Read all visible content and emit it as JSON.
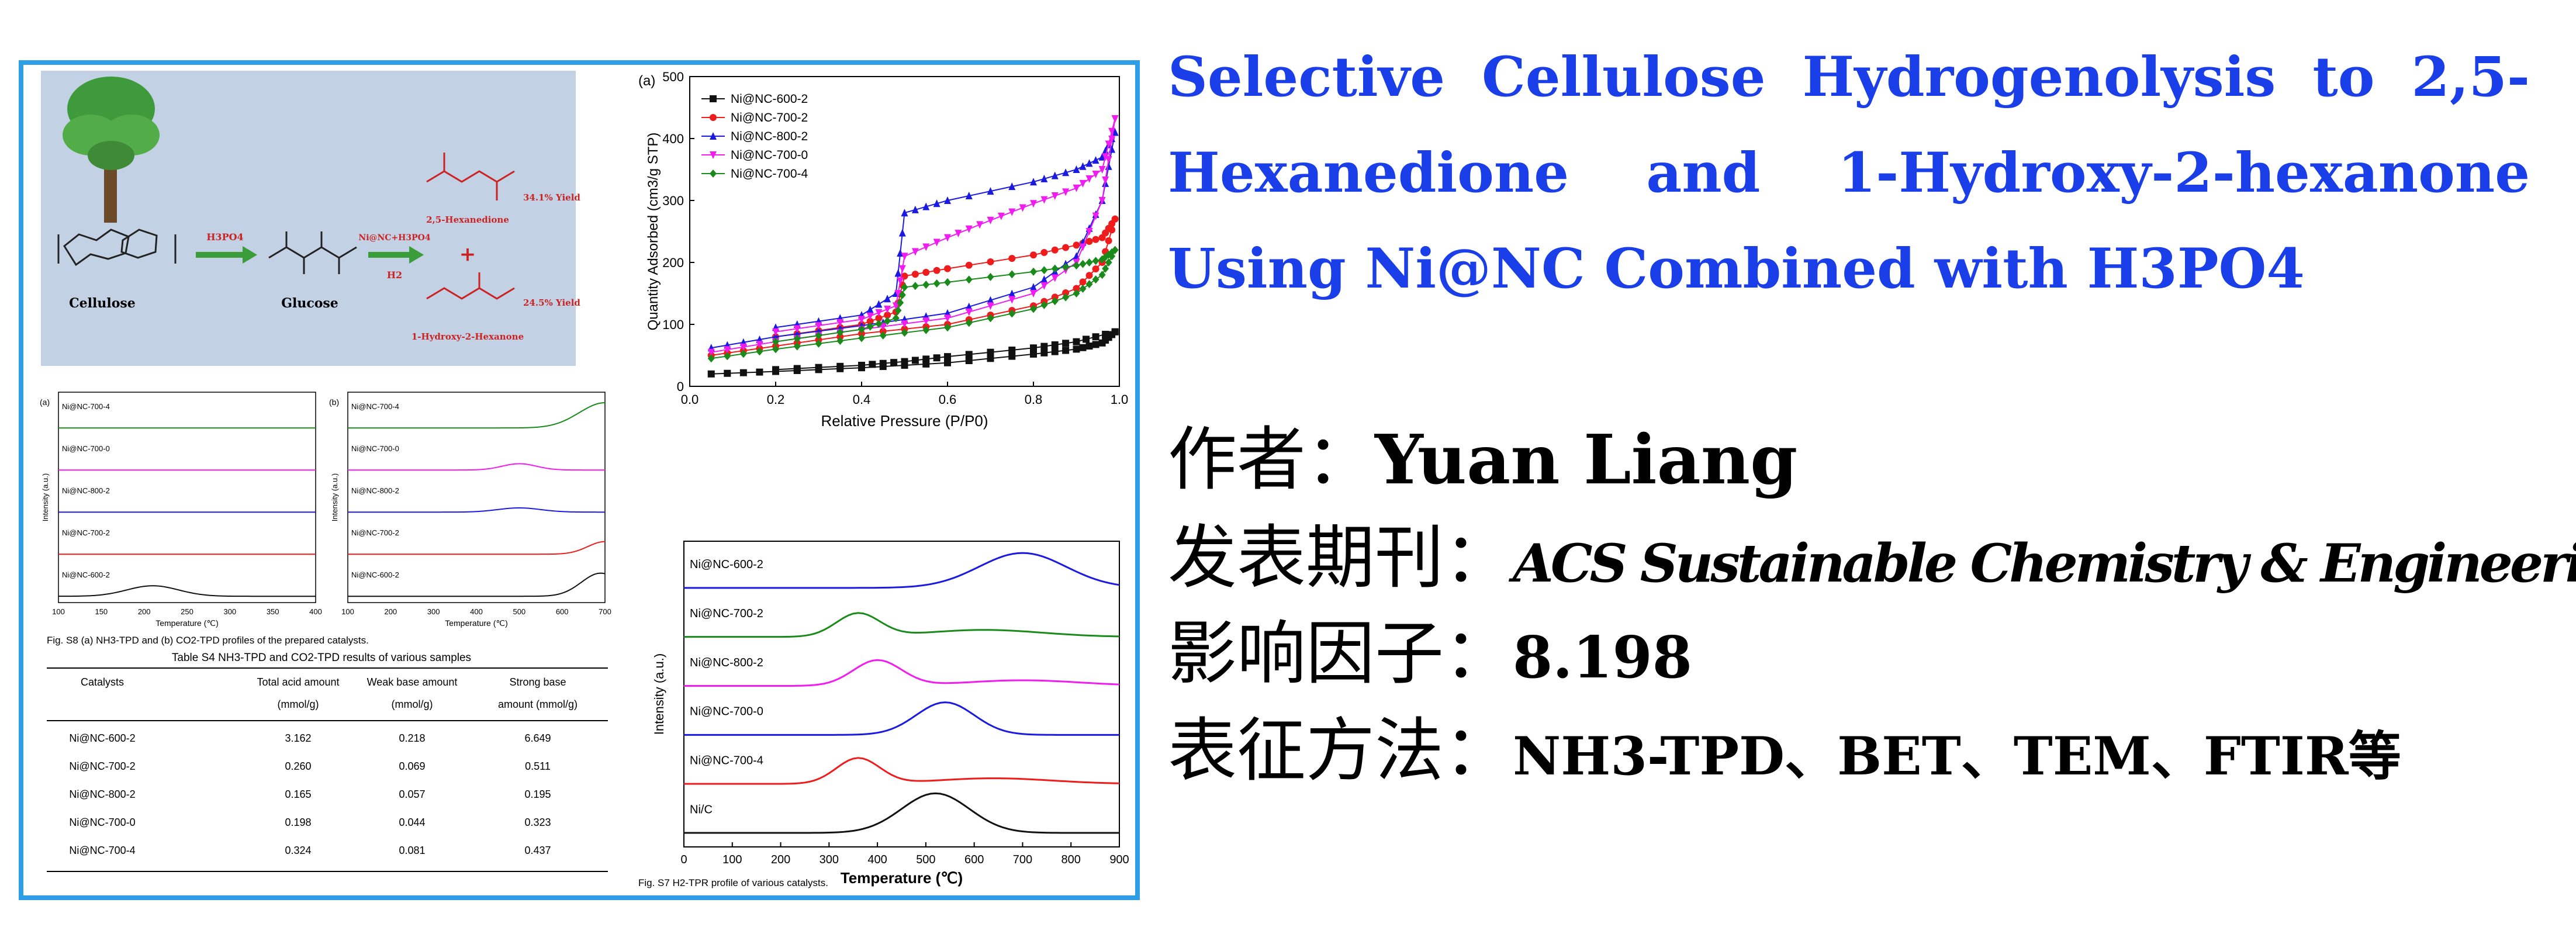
{
  "paper": {
    "title": "Selective Cellulose Hydrogenolysis to 2,5-Hexanedione and 1-Hydroxy-2-hexanone Using Ni@NC Combined with H3PO4",
    "author_label": "作者：",
    "author": "Yuan Liang",
    "journal_label": "发表期刊：",
    "journal": "ACS Sustainable Chemistry & Engineering",
    "impact_label": "影响因子：",
    "impact": "8.198",
    "methods_label": "表征方法：",
    "methods": "NH3-TPD、BET、TEM、FTIR等"
  },
  "scheme": {
    "acid_label": "H3PO4",
    "catalyst_label": "Ni@NC+H3PO4",
    "h2_label": "H2",
    "cellulose_label": "Cellulose",
    "glucose_label": "Glucose",
    "product1_name": "2,5-Hexanedione",
    "product1_yield": "34.1% Yield",
    "plus": "+",
    "product2_name": "1-Hydroxy-2-Hexanone",
    "product2_yield": "24.5% Yield"
  },
  "fig_s8": {
    "caption": "Fig. S8 (a) NH3-TPD and (b) CO2-TPD profiles of the prepared catalysts.",
    "panel_a": "(a)",
    "panel_b": "(b)",
    "ylabel": "Intensity (a.u.)",
    "xlabel": "Temperature (℃)",
    "a_ticks": [
      "100",
      "150",
      "200",
      "250",
      "300",
      "350",
      "400"
    ],
    "b_ticks": [
      "100",
      "200",
      "300",
      "400",
      "500",
      "600",
      "700"
    ],
    "labels": [
      "Ni@NC-700-4",
      "Ni@NC-700-0",
      "Ni@NC-800-2",
      "Ni@NC-700-2",
      "Ni@NC-600-2"
    ]
  },
  "table_s4": {
    "title": "Table S4 NH3-TPD and CO2-TPD results of various samples",
    "headers": [
      [
        "Catalysts",
        ""
      ],
      [
        "Total acid amount",
        "(mmol/g)"
      ],
      [
        "Weak base amount",
        "(mmol/g)"
      ],
      [
        "Strong base",
        "amount (mmol/g)"
      ]
    ],
    "rows": [
      [
        "Ni@NC-600-2",
        "3.162",
        "0.218",
        "6.649"
      ],
      [
        "Ni@NC-700-2",
        "0.260",
        "0.069",
        "0.511"
      ],
      [
        "Ni@NC-800-2",
        "0.165",
        "0.057",
        "0.195"
      ],
      [
        "Ni@NC-700-0",
        "0.198",
        "0.044",
        "0.323"
      ],
      [
        "Ni@NC-700-4",
        "0.324",
        "0.081",
        "0.437"
      ]
    ]
  },
  "colors": {
    "black": "#111111",
    "red": "#ee1c1c",
    "blue": "#1a1ae0",
    "magenta": "#f01cf0",
    "green": "#1a8a1a",
    "title_blue": "#1a3ee8",
    "frame": "#2e9ee6"
  },
  "chart_data": [
    {
      "type": "line",
      "panel_label": "(a)",
      "xlabel": "Relative Pressure (P/P0)",
      "ylabel": "Quantity Adsorbed (cm3/g STP)",
      "xlim": [
        0.0,
        1.0
      ],
      "ylim": [
        0,
        500
      ],
      "xticks": [
        "0.0",
        "0.2",
        "0.4",
        "0.6",
        "0.8",
        "1.0"
      ],
      "yticks": [
        "0",
        "100",
        "200",
        "300",
        "400",
        "500"
      ],
      "legend": "top-left",
      "series": [
        {
          "name": "Ni@NC-600-2",
          "marker": "square",
          "color": "#111111",
          "adsorption": [
            [
              0.05,
              20
            ],
            [
              0.2,
              24
            ],
            [
              0.4,
              30
            ],
            [
              0.6,
              38
            ],
            [
              0.8,
              52
            ],
            [
              0.9,
              60
            ],
            [
              0.96,
              70
            ],
            [
              0.99,
              88
            ]
          ],
          "desorption": [
            [
              0.99,
              88
            ],
            [
              0.9,
              72
            ],
            [
              0.8,
              62
            ],
            [
              0.6,
              48
            ],
            [
              0.5,
              40
            ],
            [
              0.4,
              34
            ],
            [
              0.2,
              27
            ]
          ]
        },
        {
          "name": "Ni@NC-700-2",
          "marker": "circle",
          "color": "#ee1c1c",
          "adsorption": [
            [
              0.05,
              50
            ],
            [
              0.2,
              65
            ],
            [
              0.4,
              85
            ],
            [
              0.6,
              100
            ],
            [
              0.8,
              130
            ],
            [
              0.9,
              158
            ],
            [
              0.96,
              200
            ],
            [
              0.99,
              270
            ]
          ],
          "desorption": [
            [
              0.99,
              270
            ],
            [
              0.96,
              240
            ],
            [
              0.9,
              228
            ],
            [
              0.8,
              212
            ],
            [
              0.6,
              190
            ],
            [
              0.5,
              178
            ],
            [
              0.48,
              120
            ],
            [
              0.4,
              100
            ],
            [
              0.2,
              80
            ]
          ]
        },
        {
          "name": "Ni@NC-800-2",
          "marker": "triangle",
          "color": "#1a1ae0",
          "adsorption": [
            [
              0.05,
              62
            ],
            [
              0.2,
              80
            ],
            [
              0.4,
              98
            ],
            [
              0.6,
              118
            ],
            [
              0.8,
              160
            ],
            [
              0.9,
              210
            ],
            [
              0.96,
              300
            ],
            [
              0.99,
              410
            ]
          ],
          "desorption": [
            [
              0.99,
              410
            ],
            [
              0.96,
              370
            ],
            [
              0.9,
              350
            ],
            [
              0.8,
              330
            ],
            [
              0.6,
              300
            ],
            [
              0.5,
              280
            ],
            [
              0.48,
              150
            ],
            [
              0.4,
              115
            ],
            [
              0.2,
              95
            ]
          ]
        },
        {
          "name": "Ni@NC-700-0",
          "marker": "down-triangle",
          "color": "#f01cf0",
          "adsorption": [
            [
              0.05,
              55
            ],
            [
              0.2,
              72
            ],
            [
              0.4,
              92
            ],
            [
              0.6,
              110
            ],
            [
              0.8,
              150
            ],
            [
              0.9,
              200
            ],
            [
              0.96,
              300
            ],
            [
              0.99,
              432
            ]
          ],
          "desorption": [
            [
              0.99,
              432
            ],
            [
              0.96,
              350
            ],
            [
              0.9,
              320
            ],
            [
              0.8,
              295
            ],
            [
              0.7,
              268
            ],
            [
              0.6,
              240
            ],
            [
              0.5,
              210
            ],
            [
              0.48,
              130
            ],
            [
              0.4,
              108
            ],
            [
              0.2,
              88
            ]
          ]
        },
        {
          "name": "Ni@NC-700-4",
          "marker": "diamond",
          "color": "#1a8a1a",
          "adsorption": [
            [
              0.05,
              45
            ],
            [
              0.2,
              60
            ],
            [
              0.4,
              78
            ],
            [
              0.6,
              95
            ],
            [
              0.8,
              125
            ],
            [
              0.9,
              150
            ],
            [
              0.96,
              180
            ],
            [
              0.99,
              220
            ]
          ],
          "desorption": [
            [
              0.99,
              220
            ],
            [
              0.96,
              205
            ],
            [
              0.9,
              195
            ],
            [
              0.8,
              185
            ],
            [
              0.6,
              168
            ],
            [
              0.5,
              160
            ],
            [
              0.48,
              110
            ],
            [
              0.4,
              92
            ],
            [
              0.2,
              72
            ]
          ]
        }
      ]
    },
    {
      "type": "line",
      "caption": "Fig. S7 H2-TPR profile of various catalysts.",
      "xlabel": "Temperature (℃)",
      "ylabel": "Intensity (a.u.)",
      "xlim": [
        0,
        900
      ],
      "xticks": [
        "0",
        "100",
        "200",
        "300",
        "400",
        "500",
        "600",
        "700",
        "800",
        "900"
      ],
      "series": [
        {
          "name": "Ni@NC-600-2",
          "color": "#1a1ae0",
          "offset": 5,
          "peaks": [
            [
              700,
              0.75,
              90
            ]
          ]
        },
        {
          "name": "Ni@NC-700-2",
          "color": "#1a8a1a",
          "offset": 4,
          "peaks": [
            [
              360,
              0.5,
              45
            ],
            [
              620,
              0.15,
              120
            ]
          ]
        },
        {
          "name": "Ni@NC-800-2",
          "color": "#f01cf0",
          "offset": 3,
          "peaks": [
            [
              400,
              0.55,
              50
            ],
            [
              700,
              0.12,
              120
            ]
          ]
        },
        {
          "name": "Ni@NC-700-0",
          "color": "#1a1ae0",
          "offset": 2,
          "peaks": [
            [
              540,
              0.7,
              60
            ]
          ]
        },
        {
          "name": "Ni@NC-700-4",
          "color": "#ee1c1c",
          "offset": 1,
          "peaks": [
            [
              360,
              0.55,
              45
            ],
            [
              640,
              0.12,
              120
            ]
          ]
        },
        {
          "name": "Ni/C",
          "color": "#111111",
          "offset": 0,
          "peaks": [
            [
              520,
              0.85,
              70
            ]
          ]
        }
      ]
    }
  ]
}
